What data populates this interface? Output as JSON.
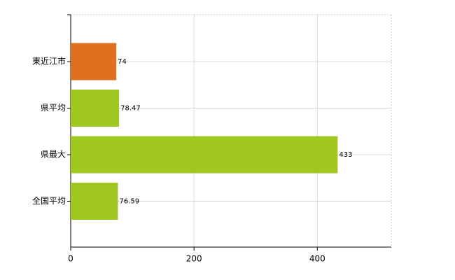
{
  "chart_data": {
    "type": "bar",
    "orientation": "horizontal",
    "categories": [
      "東近江市",
      "県平均",
      "県最大",
      "全国平均"
    ],
    "values": [
      74,
      78.47,
      433,
      76.59
    ],
    "colors": [
      "#e07020",
      "#a0c820",
      "#a0c820",
      "#a0c820"
    ],
    "xlim": [
      0,
      520
    ],
    "xticks": [
      0,
      200,
      400
    ],
    "grid": true
  }
}
